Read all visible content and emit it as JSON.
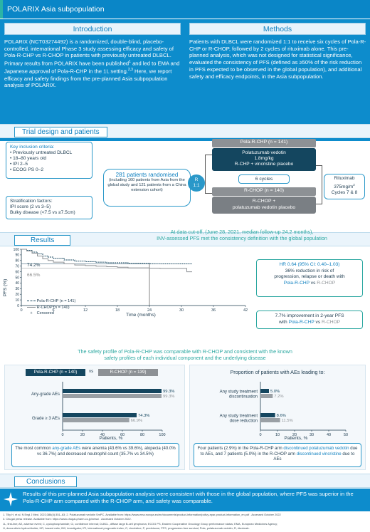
{
  "header": {
    "title": "POLARIX Asia subpopulation"
  },
  "introduction": {
    "heading": "Introduction",
    "p1": "POLARIX (NCT03274492) is a randomized, double-blind, placebo-controlled, international Phase 3 study assessing efficacy and safety of Pola-R-CHP vs R-CHOP in patients with previously untreated DLBCL. Primary results from POLARIX have been published",
    "p1_sup": "1",
    "p2": " and led to EMA and Japanese approval of Pola-R-CHP in the 1L setting.",
    "p2_sup": "2,3",
    "p3": " Here, we report efficacy and safety findings from the pre-planned Asia subpopulation analysis of POLARIX."
  },
  "methods": {
    "heading": "Methods",
    "text": "Patients with DLBCL were randomized 1:1 to receive six cycles of Pola-R-CHP or R-CHOP, followed by 2 cycles of rituximab alone. This pre-planned analysis, which was not designed for statistical significance, evaluated the consistency of PFS (defined as ≥50% of the risk reduction in PFS expected to be observed in the global population), and additional safety and efficacy endpoints, in the Asia subpopulation."
  },
  "trial": {
    "heading": "Trial design and patients",
    "inclusion_title": "Key inclusion criteria:",
    "inclusion": [
      "Previously untreated DLBCL",
      "18–80 years old",
      "IPI 2–5",
      "ECOG PS 0–2"
    ],
    "strat_title": "Stratification factors:",
    "strat": [
      "IPI score (2 vs 3–5)",
      "Bulky disease (<7.5 vs ≥7.5cm)"
    ],
    "randomised_num": "281",
    "randomised_label": "patients randomised",
    "randomised_detail": "(including 160 patients from Asia from the global study and 121 patients from a China extension cohort)",
    "r_label": "R",
    "ratio": "1:1",
    "arm1_header": "Pola-R-CHP (n = 141)",
    "arm1_line1": "Polatuzumab vedotin",
    "arm1_line2": "1.8mg/kg",
    "arm1_line3": "R-CHP + vincristine placebo",
    "cycles": "6 cycles",
    "arm2_header": "R-CHOP (n = 140)",
    "arm2_line1": "R-CHOP +",
    "arm2_line2": "polatuzumab vedotin placebo",
    "ritux_line1": "Rituximab",
    "ritux_line2": "375mg/m",
    "ritux_sup": "2",
    "ritux_line3": "Cycles 7 & 8"
  },
  "results": {
    "heading": "Results",
    "cutoff_line1": "At data cut-off, (June 28, 2021, median follow-up 24.2 months),",
    "cutoff_line2": "INV-assessed PFS met the consistency definition with the global population",
    "km_ylabel": "PFS (%)",
    "km_xlabel": "Time (months)",
    "label_742": "74.2%",
    "label_665": "66.5%",
    "legend_pola": "Pola-R-CHP (n = 141)",
    "legend_rchop": "R-CHOP (n = 140)",
    "legend_censored": "Censored",
    "hr_line1": "HR 0.64 (95% CI: 0.40–1.03)",
    "hr_line2": "36% reduction in risk of",
    "hr_line3": "progression, relapse or death with",
    "hr_pola": "Pola-R-CHP",
    "hr_vs": " vs ",
    "hr_rchop": "R-CHOP",
    "impr_line1": "7.7% improvement in 2-year PFS",
    "impr_with": "with ",
    "impr_pola": "Pola-R-CHP",
    "impr_vs": " vs ",
    "impr_rchop": "R-CHOP",
    "safety_line1": "The safety profile of Pola-R-CHP was comparable with R-CHOP and consistent with the known",
    "safety_line2": "safety profiles of each individual component and the underlying disease",
    "ae_legend_pola": "Pola-R-CHP (n = 140)",
    "ae_legend_vs": "vs",
    "ae_legend_rchop": "R-CHOP (n = 139)",
    "ae_xlabel": "Patients, %",
    "prop_title": "Proportion of patients with AEs leading to:",
    "prop_xlabel": "Patients, %",
    "note1_a": "The most common ",
    "note1_b": "any-grade AEs",
    "note1_c": " were anemia (43.6% vs 39.6%), alopecia (40.0% vs 36.7%) and decreased neutrophil count (35.7% vs 34.5%)",
    "note2_a": "Four patients (2.9%) in the Pola-R-CHP arm ",
    "note2_b": "discontinued polatuzumab vedotin",
    "note2_c": " due to AEs, and 7 patients (5.0%) in the R-CHOP arm ",
    "note2_d": "discontinued vincristine",
    "note2_e": " due to AEs"
  },
  "conclusions": {
    "heading": "Conclusions",
    "text": "Results of this pre-planned Asia subpopulation analysis were consistent with those in the global population, where PFS was superior in the Pola-R-CHP arm compared with the R-CHOP arm, and safety was comparable."
  },
  "footer": {
    "line1": "1. Tilly H, et al. N Engl J Med. 2022;386(4):351–63; 2. Polatuzumab vedotin SmPC. Available from: https://www.ema.europa.eu/en/documents/product-information/polivy-epar-product-information_en.pdf . Accessed October 2022",
    "line2": "3. Chugai press release. Available from: https://www.chugai-pharm.co.jp/news/ . Accessed October 2022.",
    "line3": "1L, first-line; AE, adverse event; C, cyclophosphamide; CI, confidence interval; DLBCL, diffuse large B-cell lymphoma; ECOG PS, Eastern Cooperative Oncology Group performance status; EMA, European Medicines Agency;",
    "line4": "H, doxorubicin hydrochloride; HR, hazard ratio; INV, investigator; IPI, international prognostic index; O, vincristine; P, prednisone; PFS, progression-free survival; Pola, polatuzumab vedotin; R, rituximab."
  },
  "colors": {
    "blue": "#0d8ccc",
    "dark": "#14465f",
    "grey": "#8d9195",
    "teal": "#2aa7a0",
    "lightblue": "#e6f2fa"
  },
  "chart_data": [
    {
      "type": "line",
      "title": "",
      "xlabel": "Time (months)",
      "ylabel": "PFS (%)",
      "xlim": [
        0,
        42
      ],
      "ylim": [
        0,
        100
      ],
      "xticks": [
        0,
        6,
        12,
        18,
        24,
        30,
        36,
        42
      ],
      "yticks": [
        0,
        10,
        20,
        30,
        40,
        50,
        60,
        70,
        80,
        90,
        100
      ],
      "series": [
        {
          "name": "Pola-R-CHP (n = 141)",
          "x": [
            0,
            1,
            2,
            3,
            4,
            5,
            6,
            8,
            10,
            12,
            14,
            16,
            18,
            20,
            22,
            24,
            26,
            28,
            30,
            31,
            32
          ],
          "y": [
            100,
            98,
            95,
            92,
            88,
            86,
            84,
            81,
            79,
            78,
            77,
            76,
            76,
            75,
            75,
            74.2,
            74,
            74,
            74,
            74,
            74
          ]
        },
        {
          "name": "R-CHOP (n = 140)",
          "x": [
            0,
            1,
            2,
            3,
            4,
            5,
            6,
            8,
            10,
            12,
            14,
            16,
            18,
            20,
            22,
            24,
            26,
            28,
            30,
            31,
            32
          ],
          "y": [
            100,
            97,
            93,
            88,
            83,
            80,
            77,
            74,
            72,
            71,
            70,
            69,
            68,
            67,
            67,
            66.5,
            66,
            66,
            66,
            60,
            60
          ]
        }
      ],
      "annotations": [
        "74.2%",
        "66.5%"
      ],
      "legend": "bottom-left"
    },
    {
      "type": "bar",
      "categories": [
        "Any-grade AEs",
        "Grade ≥ 3 AEs"
      ],
      "series": [
        {
          "name": "Pola-R-CHP (n = 140)",
          "values": [
            99.3,
            74.3
          ]
        },
        {
          "name": "R-CHOP (n = 139)",
          "values": [
            99.3,
            66.9
          ]
        }
      ],
      "xlabel": "Patients, %",
      "xlim": [
        0,
        100
      ],
      "xticks": [
        0,
        20,
        40,
        60,
        80,
        100
      ]
    },
    {
      "type": "bar",
      "title": "Proportion of patients with AEs leading to:",
      "categories": [
        "Any study treatment discontinuation",
        "Any study treatment dose reduction"
      ],
      "series": [
        {
          "name": "Pola-R-CHP",
          "values": [
            5.0,
            8.6
          ]
        },
        {
          "name": "R-CHOP",
          "values": [
            7.2,
            11.5
          ]
        }
      ],
      "xlabel": "Patients, %",
      "xlim": [
        0,
        50
      ],
      "xticks": [
        0,
        10,
        20,
        30,
        40,
        50
      ]
    }
  ]
}
